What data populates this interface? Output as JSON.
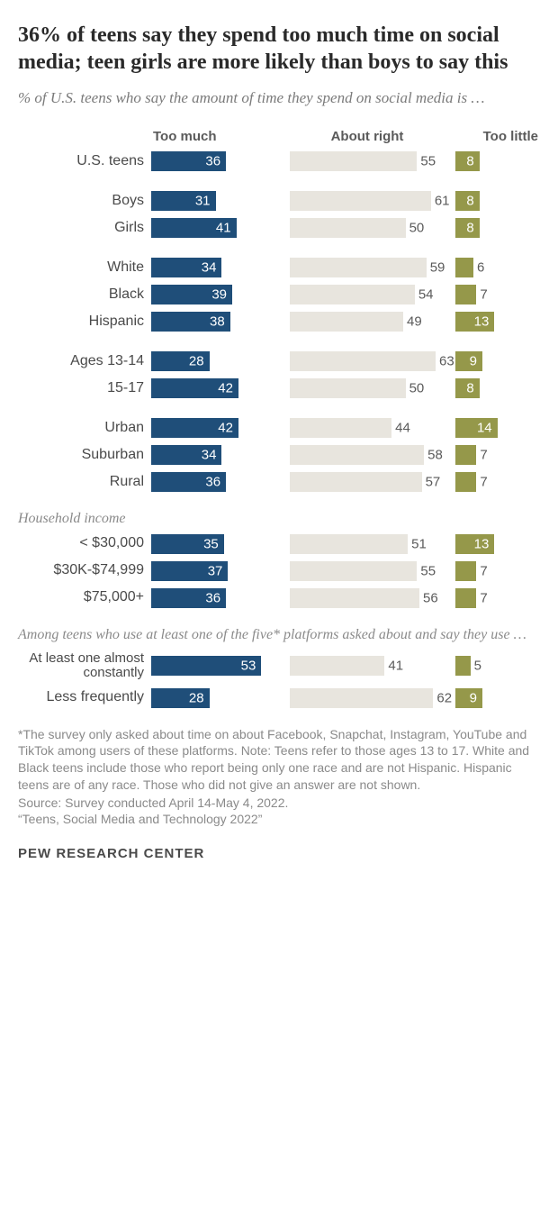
{
  "title": "36% of teens say they spend too much time on social media; teen girls are more likely than boys to say this",
  "subtitle": "% of U.S. teens who say the amount of time they spend on social media is …",
  "columns": {
    "too_much": "Too much",
    "about_right": "About right",
    "too_little": "Too little"
  },
  "colors": {
    "too_much": "#1f4e79",
    "about_right": "#e8e5de",
    "too_little": "#95984a",
    "text_dark": "#2a2a2a",
    "text_muted": "#8a8a8a",
    "bg": "#ffffff"
  },
  "scale": {
    "c1_max": 65,
    "c2_max": 70,
    "c3_max": 30
  },
  "groups": [
    {
      "intro": null,
      "rows": [
        {
          "label": "U.S. teens",
          "too_much": 36,
          "about_right": 55,
          "too_little": 8
        }
      ]
    },
    {
      "intro": null,
      "rows": [
        {
          "label": "Boys",
          "too_much": 31,
          "about_right": 61,
          "too_little": 8
        },
        {
          "label": "Girls",
          "too_much": 41,
          "about_right": 50,
          "too_little": 8
        }
      ]
    },
    {
      "intro": null,
      "rows": [
        {
          "label": "White",
          "too_much": 34,
          "about_right": 59,
          "too_little": 6
        },
        {
          "label": "Black",
          "too_much": 39,
          "about_right": 54,
          "too_little": 7
        },
        {
          "label": "Hispanic",
          "too_much": 38,
          "about_right": 49,
          "too_little": 13
        }
      ]
    },
    {
      "intro": null,
      "rows": [
        {
          "label": "Ages 13-14",
          "too_much": 28,
          "about_right": 63,
          "too_little": 9
        },
        {
          "label": "15-17",
          "too_much": 42,
          "about_right": 50,
          "too_little": 8
        }
      ]
    },
    {
      "intro": null,
      "rows": [
        {
          "label": "Urban",
          "too_much": 42,
          "about_right": 44,
          "too_little": 14
        },
        {
          "label": "Suburban",
          "too_much": 34,
          "about_right": 58,
          "too_little": 7
        },
        {
          "label": "Rural",
          "too_much": 36,
          "about_right": 57,
          "too_little": 7
        }
      ]
    },
    {
      "intro": "Household income",
      "rows": [
        {
          "label": "< $30,000",
          "too_much": 35,
          "about_right": 51,
          "too_little": 13
        },
        {
          "label": "$30K-$74,999",
          "too_much": 37,
          "about_right": 55,
          "too_little": 7
        },
        {
          "label": "$75,000+",
          "too_much": 36,
          "about_right": 56,
          "too_little": 7
        }
      ]
    },
    {
      "intro": "Among teens who use at least one of the five* platforms asked about and say they use …",
      "rows": [
        {
          "label": "At least one almost constantly",
          "multiline": true,
          "too_much": 53,
          "about_right": 41,
          "too_little": 5
        },
        {
          "label": "Less frequently",
          "too_much": 28,
          "about_right": 62,
          "too_little": 9
        }
      ]
    }
  ],
  "footnote": "*The survey only asked about time on about Facebook, Snapchat, Instagram, YouTube and TikTok among users of these platforms. Note: Teens refer to those ages 13 to 17. White and Black teens include those who report being only one race and are not Hispanic. Hispanic teens are of any race. Those who did not give an answer are not shown.",
  "source": "Source: Survey conducted April 14-May 4, 2022.",
  "report": "“Teens, Social Media and Technology 2022”",
  "logo": "PEW RESEARCH CENTER"
}
